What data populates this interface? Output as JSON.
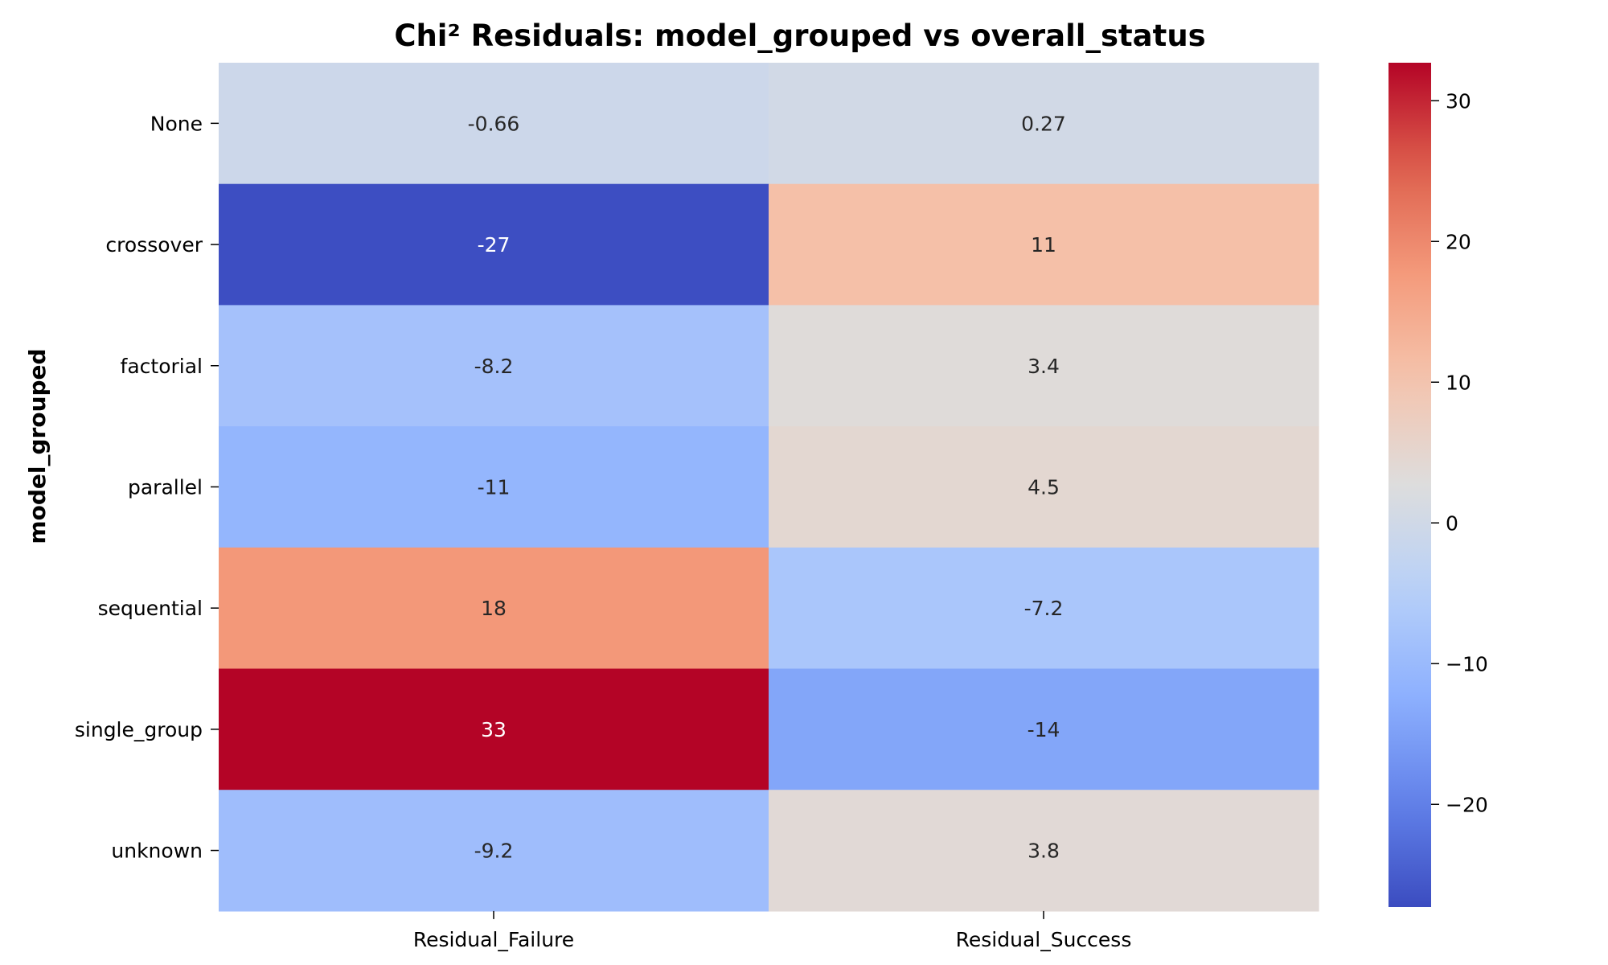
{
  "chart_data": {
    "type": "heatmap",
    "title": "Chi² Residuals: model_grouped vs overall_status",
    "xlabel": "",
    "ylabel": "model_grouped",
    "rows": [
      "None",
      "crossover",
      "factorial",
      "parallel",
      "sequential",
      "single_group",
      "unknown"
    ],
    "columns": [
      "Residual_Failure",
      "Residual_Success"
    ],
    "values": [
      [
        -0.66,
        0.27
      ],
      [
        -27,
        11
      ],
      [
        -8.2,
        3.4
      ],
      [
        -11,
        4.5
      ],
      [
        18,
        -7.2
      ],
      [
        33,
        -14
      ],
      [
        -9.2,
        3.8
      ]
    ],
    "cell_labels": [
      [
        "-0.66",
        "0.27"
      ],
      [
        "-27",
        "11"
      ],
      [
        "-8.2",
        "3.4"
      ],
      [
        "-11",
        "4.5"
      ],
      [
        "18",
        "-7.2"
      ],
      [
        "33",
        "-14"
      ],
      [
        "-9.2",
        "3.8"
      ]
    ],
    "colormap": "coolwarm",
    "color_range": [
      -27.3,
      32.7
    ],
    "colorbar_ticks": [
      30,
      20,
      10,
      0,
      -10,
      -20
    ],
    "colorbar_tick_labels": [
      "30",
      "20",
      "10",
      "0",
      "−10",
      "−20"
    ],
    "legend_placement": "right colorbar",
    "grid": false,
    "colors": {
      "cold": "#3b4cc0",
      "neutral": "#dddddd",
      "warm": "#b40426"
    }
  }
}
